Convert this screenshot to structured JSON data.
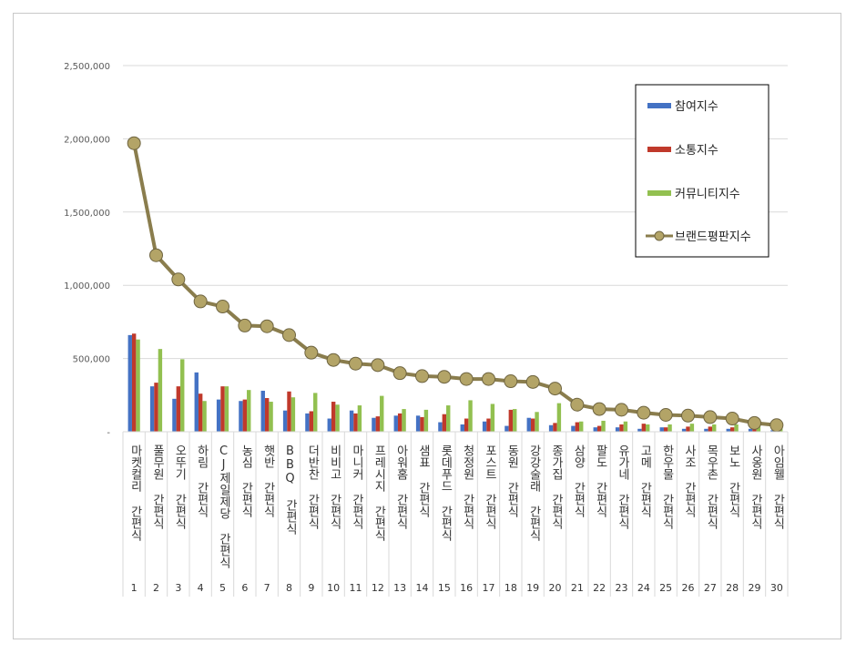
{
  "chart_data": {
    "type": "bar",
    "title": "",
    "xlabel": "",
    "ylabel": "",
    "ylim": [
      0,
      2500000
    ],
    "y_ticks": [
      "-",
      "500,000",
      "1,000,000",
      "1,500,000",
      "2,000,000",
      "2,500,000"
    ],
    "grid": true,
    "legend_position": "top-right",
    "categories": [
      "마켓컬리 간편식",
      "풀무원 간편식",
      "오뚜기 간편식",
      "하림 간편식",
      "CJ제일제당 간편식",
      "농심 간편식",
      "햇반 간편식",
      "BBQ 간편식",
      "더반찬 간편식",
      "비비고 간편식",
      "마니커 간편식",
      "프레시지 간편식",
      "아워홈 간편식",
      "샘표 간편식",
      "롯데푸드 간편식",
      "청정원 간편식",
      "포스트 간편식",
      "동원 간편식",
      "강강술래 간편식",
      "종가집 간편식",
      "삼양 간편식",
      "팔도 간편식",
      "유가네 간편식",
      "고메 간편식",
      "한우물 간편식",
      "사조 간편식",
      "목우촌 간편식",
      "보노 간편식",
      "사옹원 간편식",
      "아임웰 간편식"
    ],
    "ranks": [
      "1",
      "2",
      "3",
      "4",
      "5",
      "6",
      "7",
      "8",
      "9",
      "10",
      "11",
      "12",
      "13",
      "14",
      "15",
      "16",
      "17",
      "18",
      "19",
      "20",
      "21",
      "22",
      "23",
      "24",
      "25",
      "26",
      "27",
      "28",
      "29",
      "30"
    ],
    "series": [
      {
        "name": "참여지수",
        "kind": "bar",
        "color": "#4472c4",
        "values": [
          660000,
          310000,
          225000,
          405000,
          220000,
          210000,
          280000,
          145000,
          125000,
          90000,
          145000,
          95000,
          110000,
          110000,
          65000,
          50000,
          70000,
          40000,
          95000,
          45000,
          40000,
          30000,
          30000,
          20000,
          30000,
          20000,
          20000,
          20000,
          20000,
          10000
        ]
      },
      {
        "name": "소통지수",
        "kind": "bar",
        "color": "#c0392b",
        "values": [
          670000,
          335000,
          310000,
          260000,
          310000,
          220000,
          230000,
          275000,
          140000,
          205000,
          125000,
          105000,
          125000,
          100000,
          120000,
          90000,
          90000,
          150000,
          90000,
          60000,
          65000,
          40000,
          50000,
          55000,
          30000,
          35000,
          35000,
          30000,
          20000,
          15000
        ]
      },
      {
        "name": "커뮤니티지수",
        "kind": "bar",
        "color": "#92c050",
        "values": [
          630000,
          565000,
          495000,
          210000,
          310000,
          285000,
          205000,
          235000,
          265000,
          185000,
          180000,
          245000,
          155000,
          150000,
          180000,
          215000,
          190000,
          155000,
          135000,
          195000,
          70000,
          75000,
          70000,
          50000,
          50000,
          55000,
          50000,
          50000,
          45000,
          35000
        ]
      },
      {
        "name": "브랜드평판지수",
        "kind": "line",
        "color": "#8a7d4d",
        "marker_color": "#b3a467",
        "values": [
          1970000,
          1205000,
          1040000,
          890000,
          855000,
          725000,
          720000,
          660000,
          540000,
          490000,
          465000,
          455000,
          400000,
          380000,
          375000,
          360000,
          360000,
          345000,
          340000,
          295000,
          185000,
          155000,
          150000,
          130000,
          115000,
          110000,
          100000,
          90000,
          60000,
          45000
        ]
      }
    ]
  }
}
